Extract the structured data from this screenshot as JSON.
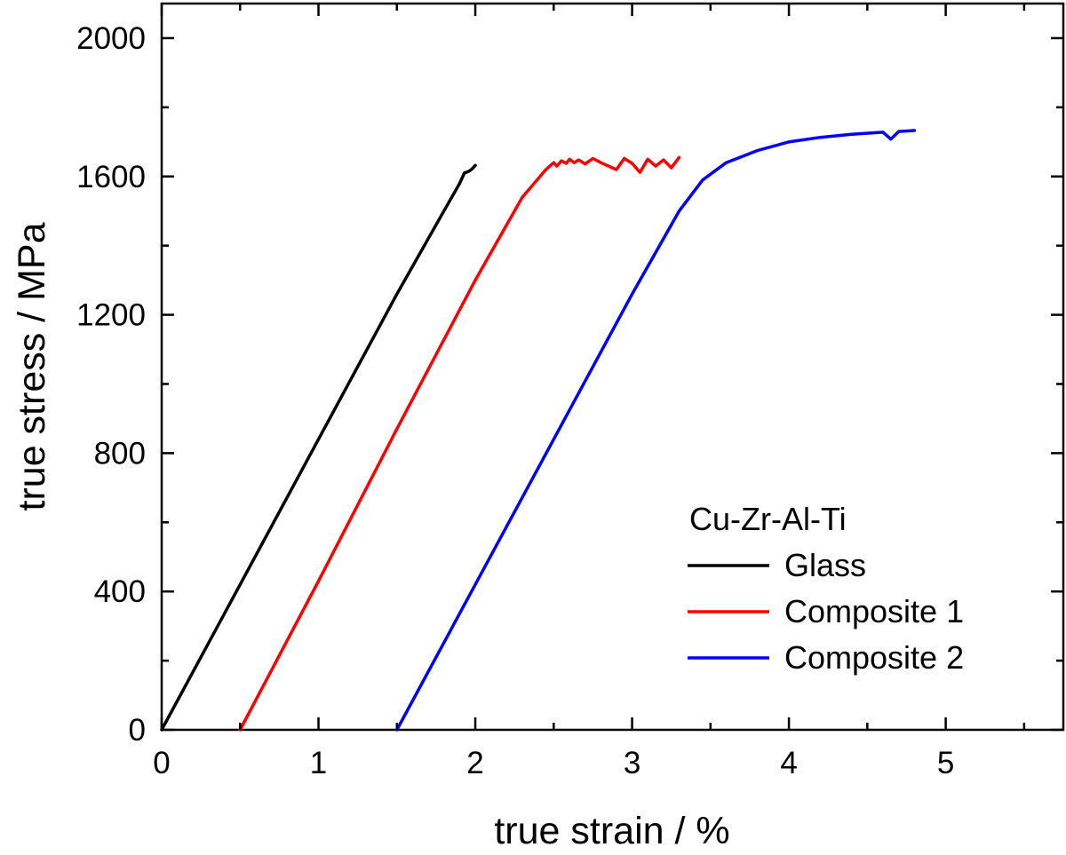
{
  "chart_data": {
    "type": "line",
    "xlabel": "true strain / %",
    "ylabel": "true stress / MPa",
    "xlim": [
      0,
      5.75
    ],
    "ylim": [
      0,
      2100
    ],
    "xticks": [
      0,
      1,
      2,
      3,
      4,
      5
    ],
    "yticks": [
      0,
      400,
      800,
      1200,
      1600,
      2000
    ],
    "grid": false,
    "legend_title": "Cu-Zr-Al-Ti",
    "legend_position": "bottom-right",
    "series": [
      {
        "name": "Glass",
        "color": "#000000",
        "x": [
          0,
          0.5,
          1.0,
          1.5,
          1.8,
          1.9,
          1.93,
          1.96,
          1.98,
          2.0
        ],
        "y": [
          0,
          420,
          840,
          1260,
          1500,
          1580,
          1610,
          1615,
          1622,
          1632
        ]
      },
      {
        "name": "Composite 1",
        "color": "#ff0000",
        "x": [
          0.5,
          1.0,
          1.5,
          2.0,
          2.3,
          2.45,
          2.5,
          2.52,
          2.55,
          2.58,
          2.6,
          2.63,
          2.66,
          2.7,
          2.75,
          2.8,
          2.85,
          2.9,
          2.95,
          3.0,
          3.05,
          3.1,
          3.15,
          3.2,
          3.25,
          3.3
        ],
        "y": [
          0,
          430,
          870,
          1300,
          1540,
          1620,
          1640,
          1630,
          1645,
          1638,
          1650,
          1640,
          1648,
          1636,
          1652,
          1640,
          1630,
          1620,
          1652,
          1638,
          1612,
          1650,
          1630,
          1648,
          1625,
          1655
        ]
      },
      {
        "name": "Composite 2",
        "color": "#0000ff",
        "x": [
          1.5,
          2.0,
          2.5,
          3.0,
          3.3,
          3.45,
          3.6,
          3.8,
          4.0,
          4.2,
          4.4,
          4.6,
          4.65,
          4.7,
          4.8
        ],
        "y": [
          0,
          420,
          840,
          1260,
          1500,
          1590,
          1640,
          1675,
          1700,
          1713,
          1722,
          1728,
          1708,
          1730,
          1733
        ]
      }
    ]
  }
}
